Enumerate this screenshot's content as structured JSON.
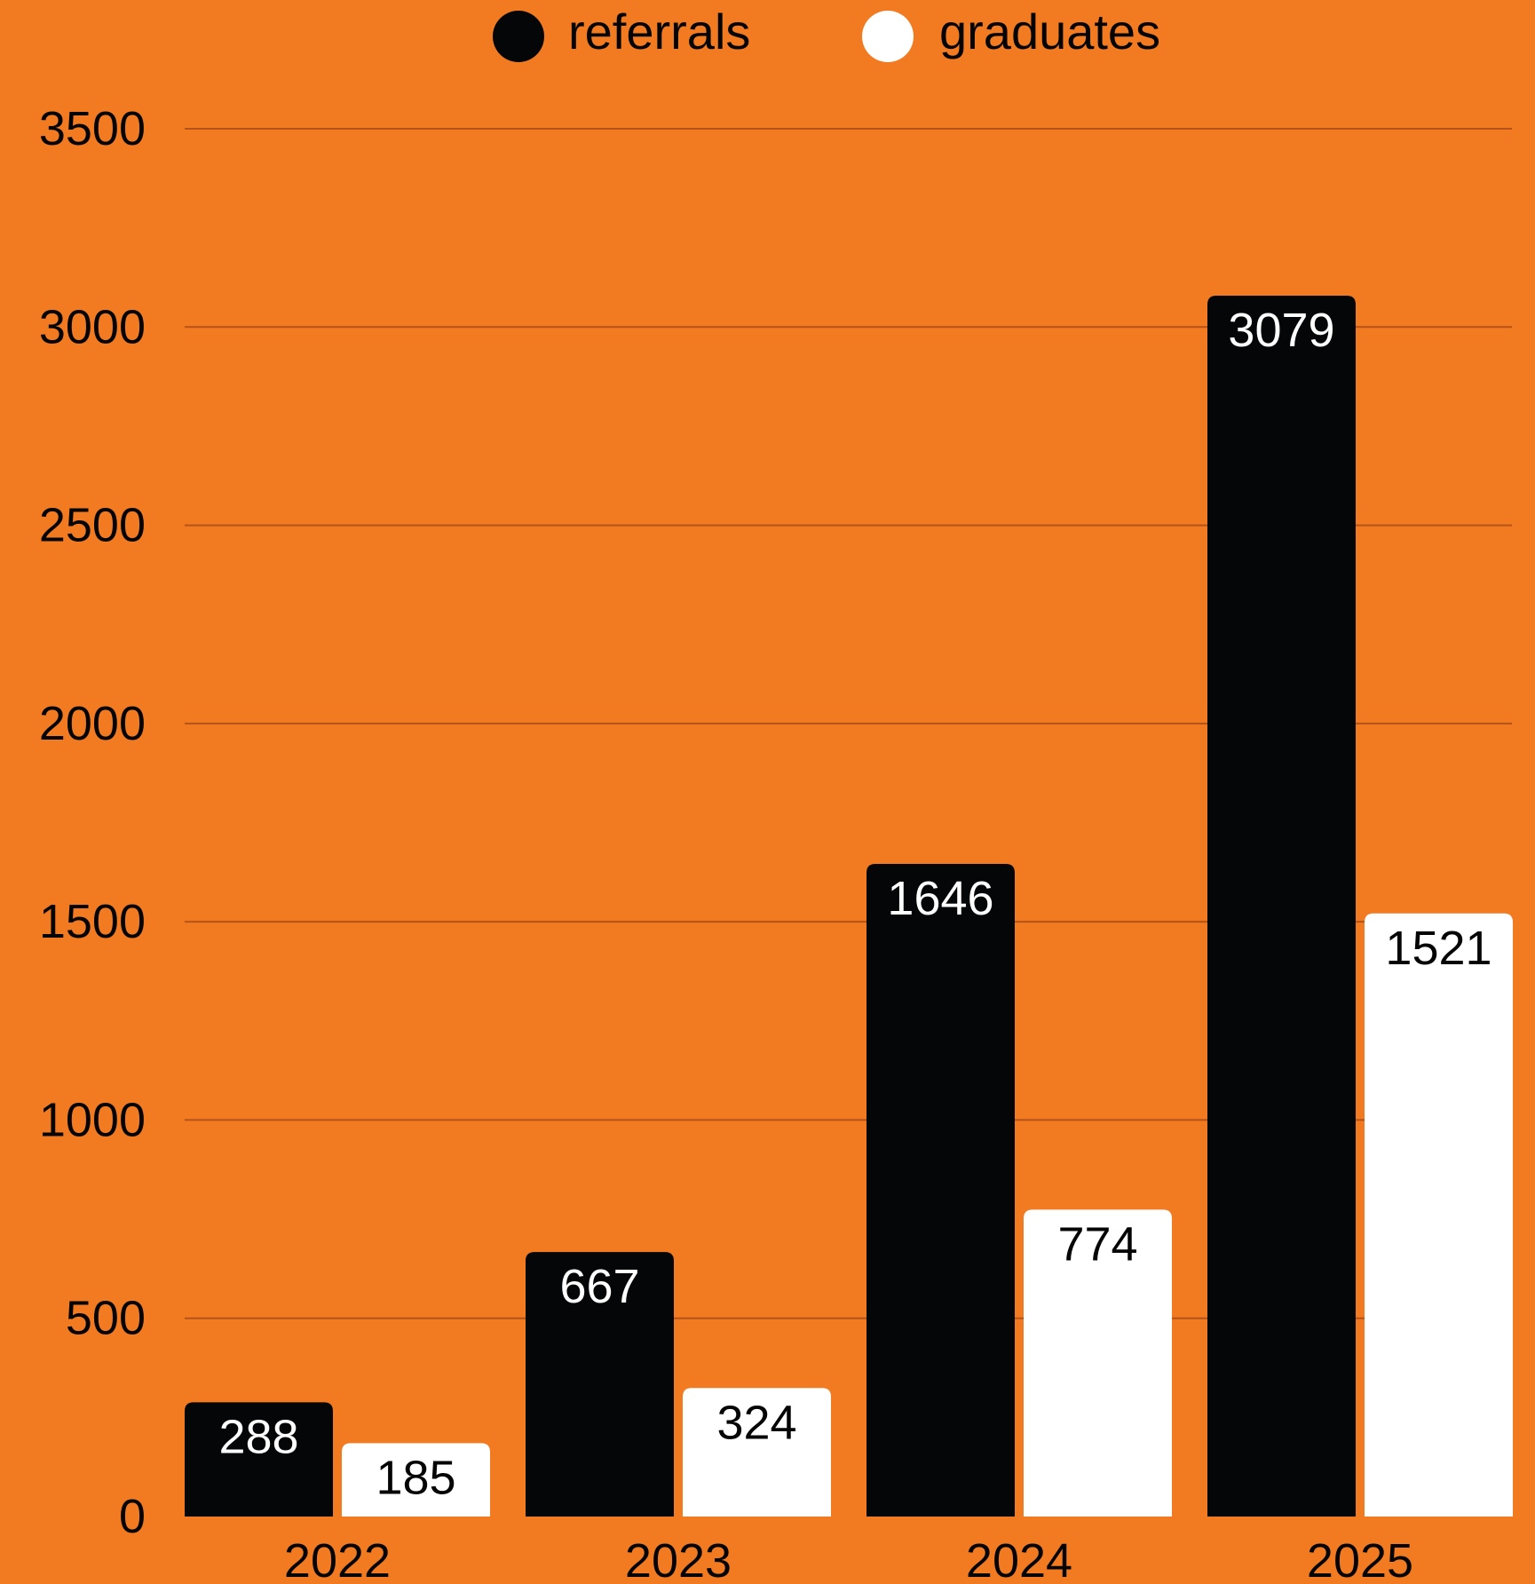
{
  "chart_data": {
    "type": "bar",
    "categories": [
      "2022",
      "2023",
      "2024",
      "2025"
    ],
    "series": [
      {
        "name": "referrals",
        "values": [
          288,
          667,
          1646,
          3079
        ],
        "color": "#050608",
        "label_color": "#FFFFFF"
      },
      {
        "name": "graduates",
        "values": [
          185,
          324,
          774,
          1521
        ],
        "color": "#FFFFFF",
        "label_color": "#050505"
      }
    ],
    "ylim": [
      0,
      3500
    ],
    "yticks": [
      "0",
      "500",
      "1000",
      "1500",
      "2000",
      "2500",
      "3000",
      "3500"
    ],
    "grid": true,
    "legend": "top-center",
    "background": "#F27B22",
    "gridline_color": "#B5521A"
  }
}
